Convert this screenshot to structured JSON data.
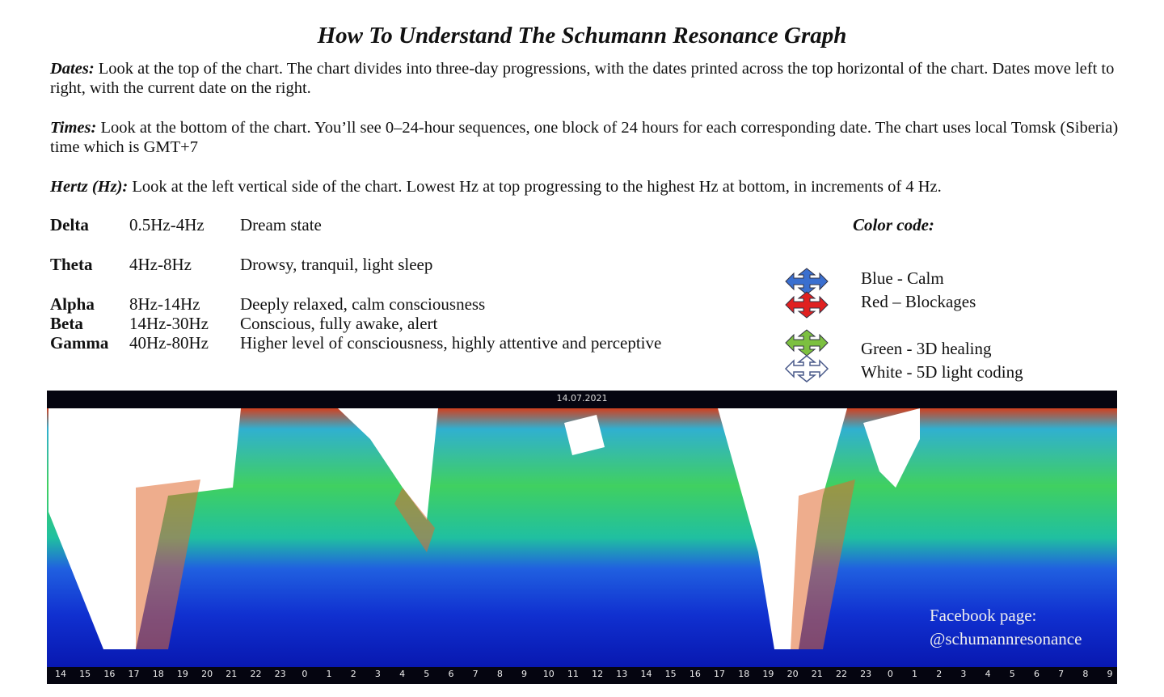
{
  "title": "How To Understand The Schumann Resonance Graph",
  "sections": [
    {
      "label": "Dates:",
      "text": "Look at the top of the chart.  The chart divides into three-day progressions, with the dates printed across the top horizontal of the chart.  Dates move left to right, with the current date on the right."
    },
    {
      "label": "Times:",
      "text": "Look at the bottom of the chart.  You’ll see 0–24-hour sequences, one block of 24 hours for each corresponding date.  The chart uses local Tomsk (Siberia) time which is GMT+7"
    },
    {
      "label": "Hertz (Hz):",
      "text": "Look at the left vertical side of the chart.  Lowest Hz at top progressing to the highest Hz at bottom, in increments of 4 Hz."
    }
  ],
  "bands": [
    {
      "name": "Delta",
      "range": "0.5Hz-4Hz",
      "description": "Dream state"
    },
    {
      "name": "Theta",
      "range": "4Hz-8Hz",
      "description": "Drowsy, tranquil, light sleep"
    },
    {
      "name": "Alpha",
      "range": "8Hz-14Hz",
      "description": "Deeply relaxed, calm consciousness"
    },
    {
      "name": "Beta",
      "range": "14Hz-30Hz",
      "description": "Conscious, fully awake, alert"
    },
    {
      "name": "Gamma",
      "range": "40Hz-80Hz",
      "description": "Higher level of consciousness, highly attentive and perceptive"
    }
  ],
  "color_code": {
    "title": "Color code:",
    "items": [
      "Blue - Calm",
      "Red – Blockages",
      "Green - 3D healing",
      "White - 5D light coding"
    ]
  },
  "spectrogram": {
    "date": "14.07.2021",
    "hours": [
      14,
      15,
      16,
      17,
      18,
      19,
      20,
      21,
      22,
      23,
      0,
      1,
      2,
      3,
      4,
      5,
      6,
      7,
      8,
      9,
      10,
      11,
      12,
      13,
      14,
      15,
      16,
      17,
      18,
      19,
      20,
      21,
      22,
      23,
      0,
      1,
      2,
      3,
      4,
      5,
      6,
      7,
      8,
      9
    ],
    "watermark": [
      "Facebook page:",
      "@schumannresonance"
    ]
  }
}
